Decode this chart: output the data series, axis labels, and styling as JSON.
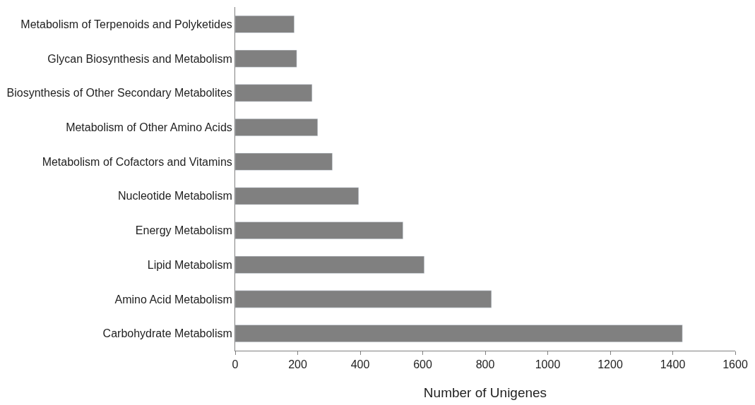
{
  "chart_data": {
    "type": "bar",
    "orientation": "horizontal",
    "xlabel": "Number of Unigenes",
    "categories": [
      "Metabolism of Terpenoids and Polyketides",
      "Glycan Biosynthesis and Metabolism",
      "Biosynthesis of Other Secondary Metabolites",
      "Metabolism of Other Amino Acids",
      "Metabolism of Cofactors and Vitamins",
      "Nucleotide Metabolism",
      "Energy Metabolism",
      "Lipid Metabolism",
      "Amino Acid Metabolism",
      "Carbohydrate Metabolism"
    ],
    "values": [
      189,
      197,
      246,
      264,
      311,
      395,
      537,
      605,
      820,
      1431
    ],
    "color": "#808080",
    "xlim": [
      0,
      1600
    ],
    "xticks": [
      0,
      200,
      400,
      600,
      800,
      1000,
      1200,
      1400,
      1600
    ]
  }
}
